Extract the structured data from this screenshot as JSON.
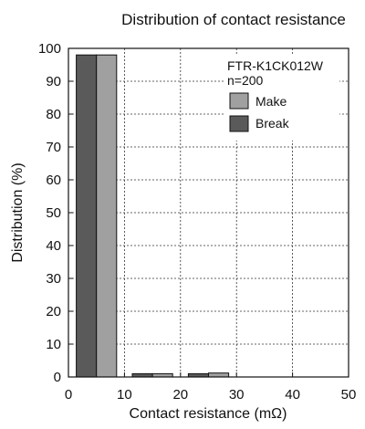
{
  "chart_data": {
    "type": "bar",
    "title": "Distribution of contact resistance",
    "xlabel": "Contact resistance (mΩ)",
    "ylabel": "Distribution (%)",
    "xlim": [
      0,
      50
    ],
    "ylim": [
      0,
      100
    ],
    "x_ticks": [
      0,
      10,
      20,
      30,
      40,
      50
    ],
    "y_ticks": [
      0,
      10,
      20,
      30,
      40,
      50,
      60,
      70,
      80,
      90,
      100
    ],
    "grid": "dotted",
    "legend": {
      "placement": "top-right",
      "part_number": "FTR-K1CK012W",
      "sample_size": "n=200"
    },
    "bin_centers": [
      5,
      15,
      25
    ],
    "series": [
      {
        "name": "Break",
        "color": "#5a5a5a",
        "values": [
          98,
          1,
          1
        ]
      },
      {
        "name": "Make",
        "color": "#a0a0a0",
        "values": [
          98,
          1,
          1.2
        ]
      }
    ]
  }
}
